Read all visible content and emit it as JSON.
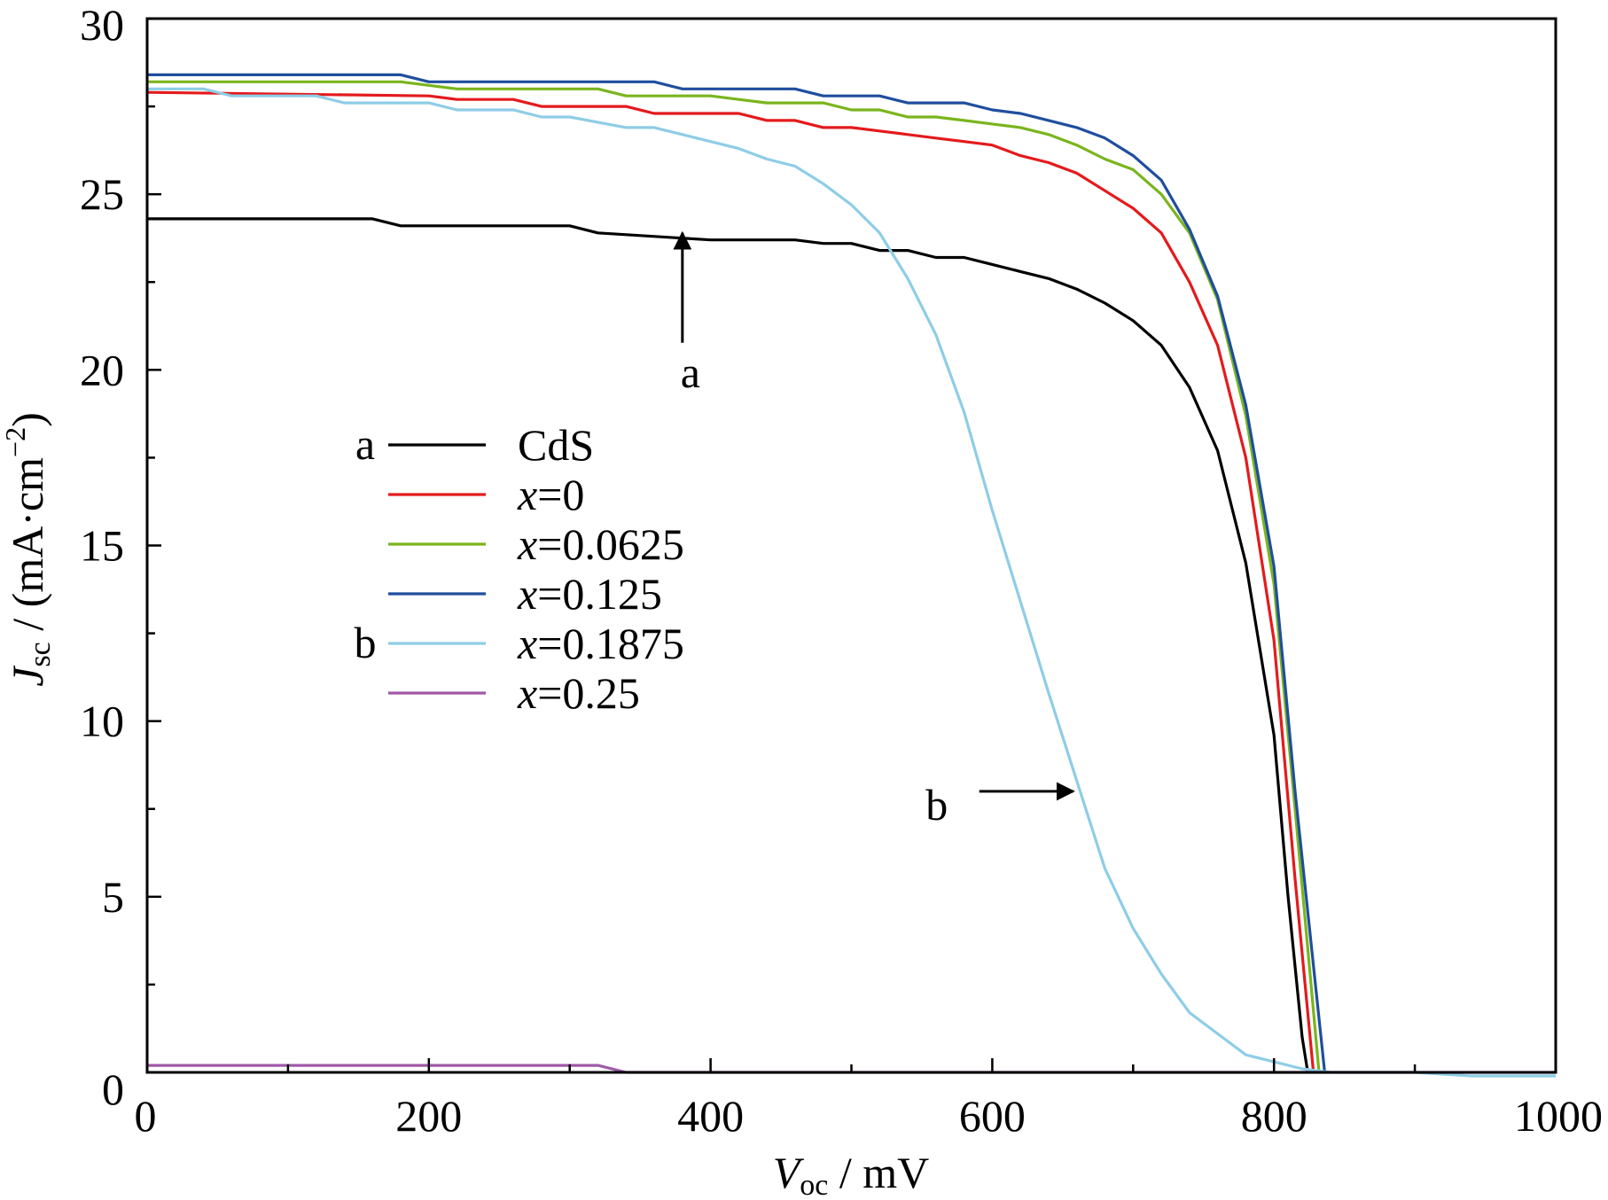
{
  "chart_data": {
    "type": "line",
    "title": "",
    "xlabel": {
      "main": "V",
      "sub": "oc",
      "unit": " / mV"
    },
    "ylabel": {
      "main": "J",
      "sub": "sc",
      "unit": " / (mA·cm",
      "sup": "−2",
      "close": ")"
    },
    "xlim": [
      0,
      1000
    ],
    "ylim": [
      0,
      30
    ],
    "x_ticks": [
      0,
      200,
      400,
      600,
      800,
      1000
    ],
    "x_tick_labels": [
      "0",
      "200",
      "400",
      "600",
      "800",
      "1000"
    ],
    "x_minor_ticks": [
      100,
      300,
      500,
      700,
      900
    ],
    "y_ticks": [
      0,
      5,
      10,
      15,
      20,
      25,
      30
    ],
    "y_tick_labels": [
      "0",
      "5",
      "10",
      "15",
      "20",
      "25",
      "30"
    ],
    "y_minor_ticks": [
      2.5,
      7.5,
      12.5,
      17.5,
      22.5,
      27.5
    ],
    "grid": false,
    "legend_position": "center-left",
    "series": [
      {
        "name": "CdS",
        "legend_italic_prefix": "",
        "legend_rest": "CdS",
        "legend_tag": "a",
        "color": "#000000",
        "x": [
          0,
          160,
          180,
          300,
          320,
          400,
          460,
          480,
          500,
          520,
          540,
          560,
          580,
          600,
          620,
          640,
          660,
          680,
          700,
          720,
          740,
          760,
          780,
          800,
          810,
          820,
          824
        ],
        "y": [
          24.3,
          24.3,
          24.1,
          24.1,
          23.9,
          23.7,
          23.7,
          23.6,
          23.6,
          23.4,
          23.4,
          23.2,
          23.2,
          23.0,
          22.8,
          22.6,
          22.3,
          21.9,
          21.4,
          20.7,
          19.5,
          17.7,
          14.5,
          9.6,
          5.0,
          1.0,
          0
        ]
      },
      {
        "name": "x=0",
        "legend_italic_prefix": "x",
        "legend_rest": "=0",
        "legend_tag": "",
        "color": "#e41a1c",
        "x": [
          0,
          200,
          220,
          260,
          280,
          340,
          360,
          420,
          440,
          460,
          480,
          500,
          520,
          540,
          560,
          580,
          600,
          620,
          640,
          660,
          680,
          700,
          720,
          740,
          760,
          780,
          800,
          815,
          828
        ],
        "y": [
          27.9,
          27.8,
          27.7,
          27.7,
          27.5,
          27.5,
          27.3,
          27.3,
          27.1,
          27.1,
          26.9,
          26.9,
          26.8,
          26.7,
          26.6,
          26.5,
          26.4,
          26.1,
          25.9,
          25.6,
          25.1,
          24.6,
          23.9,
          22.5,
          20.7,
          17.5,
          12.3,
          5.5,
          0
        ]
      },
      {
        "name": "x=0.0625",
        "legend_italic_prefix": "x",
        "legend_rest": "=0.0625",
        "legend_tag": "",
        "color": "#7ab51d",
        "x": [
          0,
          180,
          200,
          220,
          320,
          340,
          400,
          420,
          440,
          480,
          500,
          520,
          540,
          560,
          580,
          600,
          620,
          640,
          660,
          680,
          700,
          720,
          740,
          760,
          780,
          800,
          815,
          832
        ],
        "y": [
          28.2,
          28.2,
          28.1,
          28.0,
          28.0,
          27.8,
          27.8,
          27.7,
          27.6,
          27.6,
          27.4,
          27.4,
          27.2,
          27.2,
          27.1,
          27.0,
          26.9,
          26.7,
          26.4,
          26.0,
          25.7,
          25.0,
          23.9,
          22.0,
          18.7,
          13.9,
          7.5,
          0
        ]
      },
      {
        "name": "x=0.125",
        "legend_italic_prefix": "x",
        "legend_rest": "=0.125",
        "legend_tag": "",
        "color": "#1f4e9e",
        "x": [
          0,
          180,
          200,
          360,
          380,
          460,
          480,
          520,
          540,
          580,
          600,
          620,
          640,
          660,
          680,
          700,
          720,
          740,
          760,
          780,
          800,
          815,
          836
        ],
        "y": [
          28.4,
          28.4,
          28.2,
          28.2,
          28.0,
          28.0,
          27.8,
          27.8,
          27.6,
          27.6,
          27.4,
          27.3,
          27.1,
          26.9,
          26.6,
          26.1,
          25.4,
          24.0,
          22.1,
          19.0,
          14.4,
          8.0,
          0
        ]
      },
      {
        "name": "x=0.1875",
        "legend_italic_prefix": "x",
        "legend_rest": "=0.1875",
        "legend_tag": "b",
        "color": "#8ecde6",
        "x": [
          0,
          40,
          60,
          120,
          140,
          200,
          220,
          260,
          280,
          300,
          340,
          360,
          380,
          400,
          420,
          440,
          460,
          480,
          500,
          520,
          540,
          560,
          580,
          600,
          620,
          640,
          660,
          680,
          700,
          720,
          740,
          760,
          780,
          800,
          820,
          840,
          900,
          940,
          1000
        ],
        "y": [
          28.0,
          28.0,
          27.8,
          27.8,
          27.6,
          27.6,
          27.4,
          27.4,
          27.2,
          27.2,
          26.9,
          26.9,
          26.7,
          26.5,
          26.3,
          26.0,
          25.8,
          25.3,
          24.7,
          23.9,
          22.6,
          21.0,
          18.8,
          16.0,
          13.4,
          10.8,
          8.3,
          5.8,
          4.1,
          2.8,
          1.7,
          1.1,
          0.5,
          0.3,
          0.1,
          0,
          0,
          -0.1,
          -0.1
        ]
      },
      {
        "name": "x=0.25",
        "legend_italic_prefix": "x",
        "legend_rest": "=0.25",
        "legend_tag": "",
        "color": "#a05aa8",
        "x": [
          0,
          320,
          340,
          1000
        ],
        "y": [
          0.2,
          0.2,
          0,
          0
        ]
      }
    ],
    "annotations": [
      {
        "label": "a",
        "series": "CdS",
        "arrow_direction": "up",
        "target_x": 380,
        "target_y": 24.0
      },
      {
        "label": "b",
        "series": "x=0.1875",
        "arrow_direction": "right",
        "target_x": 660,
        "target_y": 8.0
      }
    ]
  }
}
